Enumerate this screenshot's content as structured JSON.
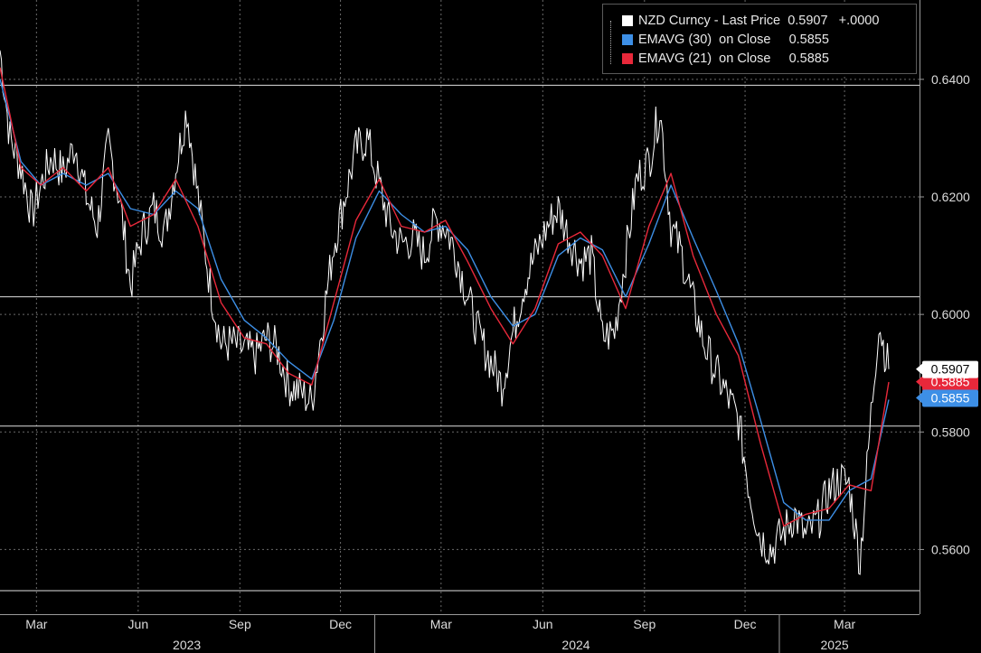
{
  "legend": {
    "series": [
      {
        "name": "NZD Curncy - Last Price",
        "value": "0.5907",
        "change": "+.0000",
        "color": "#ffffff"
      },
      {
        "name": "EMAVG (30)  on Close",
        "value": "0.5855",
        "color": "#3d8fe6"
      },
      {
        "name": "EMAVG (21)  on Close",
        "value": "0.5885",
        "color": "#e8283a"
      }
    ]
  },
  "chart_data": {
    "type": "line",
    "ylim": [
      0.549,
      0.6535
    ],
    "y_ticks": [
      "0.5600",
      "0.5800",
      "0.6000",
      "0.6200",
      "0.6400"
    ],
    "x_month_labels": [
      "Mar",
      "Jun",
      "Sep",
      "Dec",
      "Mar",
      "Jun",
      "Sep",
      "Dec",
      "Mar"
    ],
    "x_year_labels": [
      "2023",
      "2024",
      "2025"
    ],
    "x_range": [
      "2023-01-27",
      "2025-04-10"
    ],
    "horizontal_lines": [
      0.639,
      0.603,
      0.581,
      0.553
    ],
    "grid": true,
    "price_series": {
      "name": "NZD Curncy - Last Price",
      "x": [
        "2023-01-27",
        "2023-02-05",
        "2023-02-15",
        "2023-02-25",
        "2023-03-05",
        "2023-03-15",
        "2023-03-25",
        "2023-04-05",
        "2023-04-15",
        "2023-04-25",
        "2023-05-05",
        "2023-05-15",
        "2023-05-25",
        "2023-06-05",
        "2023-06-15",
        "2023-06-25",
        "2023-07-05",
        "2023-07-15",
        "2023-07-25",
        "2023-08-05",
        "2023-08-15",
        "2023-08-25",
        "2023-09-05",
        "2023-09-15",
        "2023-09-25",
        "2023-10-05",
        "2023-10-15",
        "2023-10-25",
        "2023-11-05",
        "2023-11-15",
        "2023-11-25",
        "2023-12-05",
        "2023-12-15",
        "2023-12-25",
        "2024-01-05",
        "2024-01-15",
        "2024-01-25",
        "2024-02-05",
        "2024-02-15",
        "2024-02-25",
        "2024-03-05",
        "2024-03-15",
        "2024-03-25",
        "2024-04-05",
        "2024-04-15",
        "2024-04-25",
        "2024-05-05",
        "2024-05-15",
        "2024-05-25",
        "2024-06-05",
        "2024-06-15",
        "2024-06-25",
        "2024-07-05",
        "2024-07-15",
        "2024-07-25",
        "2024-08-05",
        "2024-08-15",
        "2024-08-25",
        "2024-09-05",
        "2024-09-15",
        "2024-09-25",
        "2024-10-05",
        "2024-10-15",
        "2024-10-25",
        "2024-11-05",
        "2024-11-15",
        "2024-11-25",
        "2024-12-05",
        "2024-12-15",
        "2024-12-25",
        "2025-01-05",
        "2025-01-15",
        "2025-01-25",
        "2025-02-05",
        "2025-02-15",
        "2025-02-25",
        "2025-03-05",
        "2025-03-15",
        "2025-03-25",
        "2025-04-01",
        "2025-04-05",
        "2025-04-10"
      ],
      "y": [
        0.645,
        0.63,
        0.625,
        0.617,
        0.622,
        0.627,
        0.624,
        0.629,
        0.62,
        0.615,
        0.629,
        0.62,
        0.605,
        0.614,
        0.618,
        0.614,
        0.625,
        0.635,
        0.62,
        0.605,
        0.595,
        0.595,
        0.594,
        0.593,
        0.596,
        0.594,
        0.588,
        0.587,
        0.585,
        0.599,
        0.612,
        0.62,
        0.628,
        0.63,
        0.622,
        0.615,
        0.612,
        0.613,
        0.61,
        0.616,
        0.615,
        0.61,
        0.603,
        0.596,
        0.592,
        0.588,
        0.597,
        0.605,
        0.61,
        0.615,
        0.618,
        0.613,
        0.609,
        0.61,
        0.596,
        0.597,
        0.61,
        0.623,
        0.626,
        0.635,
        0.615,
        0.61,
        0.602,
        0.595,
        0.59,
        0.586,
        0.582,
        0.57,
        0.562,
        0.56,
        0.563,
        0.566,
        0.562,
        0.565,
        0.57,
        0.572,
        0.571,
        0.558,
        0.583,
        0.599,
        0.595,
        0.5907
      ]
    },
    "ema30_series": {
      "name": "EMAVG (30)  on Close",
      "x": [
        "2023-01-27",
        "2023-02-15",
        "2023-03-05",
        "2023-03-25",
        "2023-04-15",
        "2023-05-05",
        "2023-05-25",
        "2023-06-15",
        "2023-07-05",
        "2023-07-25",
        "2023-08-15",
        "2023-09-05",
        "2023-09-25",
        "2023-10-15",
        "2023-11-05",
        "2023-11-25",
        "2023-12-15",
        "2024-01-05",
        "2024-01-25",
        "2024-02-15",
        "2024-03-05",
        "2024-03-25",
        "2024-04-15",
        "2024-05-05",
        "2024-05-25",
        "2024-06-15",
        "2024-07-05",
        "2024-07-25",
        "2024-08-15",
        "2024-09-05",
        "2024-09-25",
        "2024-10-15",
        "2024-11-05",
        "2024-11-25",
        "2024-12-15",
        "2025-01-05",
        "2025-01-25",
        "2025-02-15",
        "2025-03-05",
        "2025-03-25",
        "2025-04-10"
      ],
      "y": [
        0.64,
        0.626,
        0.622,
        0.624,
        0.622,
        0.624,
        0.618,
        0.617,
        0.621,
        0.618,
        0.606,
        0.599,
        0.596,
        0.592,
        0.589,
        0.599,
        0.613,
        0.621,
        0.617,
        0.614,
        0.615,
        0.611,
        0.603,
        0.598,
        0.6,
        0.61,
        0.613,
        0.611,
        0.603,
        0.612,
        0.622,
        0.613,
        0.604,
        0.595,
        0.582,
        0.568,
        0.565,
        0.565,
        0.57,
        0.572,
        0.5855
      ]
    },
    "ema21_series": {
      "name": "EMAVG (21)  on Close",
      "x": [
        "2023-01-27",
        "2023-02-15",
        "2023-03-05",
        "2023-03-25",
        "2023-04-15",
        "2023-05-05",
        "2023-05-25",
        "2023-06-15",
        "2023-07-05",
        "2023-07-25",
        "2023-08-15",
        "2023-09-05",
        "2023-09-25",
        "2023-10-15",
        "2023-11-05",
        "2023-11-25",
        "2023-12-15",
        "2024-01-05",
        "2024-01-25",
        "2024-02-15",
        "2024-03-05",
        "2024-03-25",
        "2024-04-15",
        "2024-05-05",
        "2024-05-25",
        "2024-06-15",
        "2024-07-05",
        "2024-07-25",
        "2024-08-15",
        "2024-09-05",
        "2024-09-25",
        "2024-10-15",
        "2024-11-05",
        "2024-11-25",
        "2024-12-15",
        "2025-01-05",
        "2025-01-25",
        "2025-02-15",
        "2025-03-05",
        "2025-03-25",
        "2025-04-10"
      ],
      "y": [
        0.642,
        0.625,
        0.622,
        0.625,
        0.621,
        0.625,
        0.615,
        0.617,
        0.623,
        0.615,
        0.602,
        0.596,
        0.595,
        0.59,
        0.588,
        0.602,
        0.616,
        0.623,
        0.615,
        0.614,
        0.616,
        0.609,
        0.601,
        0.595,
        0.601,
        0.612,
        0.614,
        0.61,
        0.601,
        0.615,
        0.624,
        0.61,
        0.6,
        0.593,
        0.578,
        0.564,
        0.566,
        0.567,
        0.571,
        0.57,
        0.5885
      ]
    },
    "price_tags": [
      {
        "value": 0.5907,
        "label": "0.5907",
        "bg": "#ffffff",
        "fg": "#000000"
      },
      {
        "value": 0.5885,
        "label": "0.5885",
        "bg": "#e8283a",
        "fg": "#ffffff"
      },
      {
        "value": 0.5855,
        "label": "0.5855",
        "bg": "#3d8fe6",
        "fg": "#ffffff"
      }
    ],
    "colors": {
      "background": "#000000",
      "grid": "#6a6a6a",
      "axis_text": "#dcdcdc"
    }
  }
}
